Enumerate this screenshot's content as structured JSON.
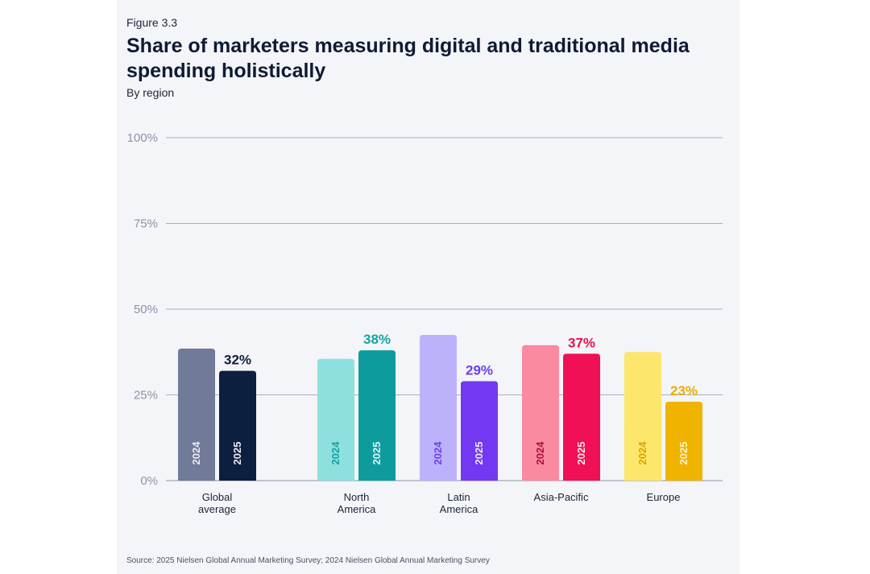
{
  "figure_label": "Figure 3.3",
  "title": "Share of marketers measuring digital and traditional media spending holistically",
  "subtitle": "By region",
  "source": "Source: 2025 Nielsen Global Annual Marketing Survey; 2024 Nielsen Global Annual Marketing Survey",
  "chart_data": {
    "type": "bar",
    "title": "Share of marketers measuring digital and traditional media spending holistically",
    "subtitle": "By region",
    "xlabel": "",
    "ylabel": "",
    "ylim": [
      0,
      100
    ],
    "yticks": [
      0,
      25,
      50,
      75,
      100
    ],
    "ytick_labels": [
      "0%",
      "25%",
      "50%",
      "75%",
      "100%"
    ],
    "grid": true,
    "series_names": [
      "2024",
      "2025"
    ],
    "categories": [
      {
        "label_lines": [
          "Global",
          "average"
        ],
        "bars": [
          {
            "year": "2024",
            "value": 38.5,
            "label": "",
            "color": "#717a99",
            "text_color": "#e8eaf2"
          },
          {
            "year": "2025",
            "value": 32,
            "label": "32%",
            "color": "#0d1f3f",
            "text_color": "#e8eaf2",
            "label_color": "#0d1f3f"
          }
        ]
      },
      {
        "label_lines": [
          "North",
          "America"
        ],
        "bars": [
          {
            "year": "2024",
            "value": 35.5,
            "label": "",
            "color": "#8ee0de",
            "text_color": "#14a3a3"
          },
          {
            "year": "2025",
            "value": 38,
            "label": "38%",
            "color": "#0e9b9e",
            "text_color": "#d9f7f6",
            "label_color": "#14a3a3"
          }
        ]
      },
      {
        "label_lines": [
          "Latin",
          "America"
        ],
        "bars": [
          {
            "year": "2024",
            "value": 42.5,
            "label": "",
            "color": "#bcb2fb",
            "text_color": "#6a3ff0"
          },
          {
            "year": "2025",
            "value": 29,
            "label": "29%",
            "color": "#7238f2",
            "text_color": "#ede8ff",
            "label_color": "#6a3ff0"
          }
        ]
      },
      {
        "label_lines": [
          "Asia-Pacific"
        ],
        "bars": [
          {
            "year": "2024",
            "value": 39.5,
            "label": "",
            "color": "#f98a9f",
            "text_color": "#b00d40"
          },
          {
            "year": "2025",
            "value": 37,
            "label": "37%",
            "color": "#f01055",
            "text_color": "#ffe6ec",
            "label_color": "#e6114f"
          }
        ]
      },
      {
        "label_lines": [
          "Europe"
        ],
        "bars": [
          {
            "year": "2024",
            "value": 37.5,
            "label": "",
            "color": "#fde66c",
            "text_color": "#d6a400"
          },
          {
            "year": "2025",
            "value": 23,
            "label": "23%",
            "color": "#efb300",
            "text_color": "#fff3c9",
            "label_color": "#e8ad00"
          }
        ]
      }
    ]
  }
}
